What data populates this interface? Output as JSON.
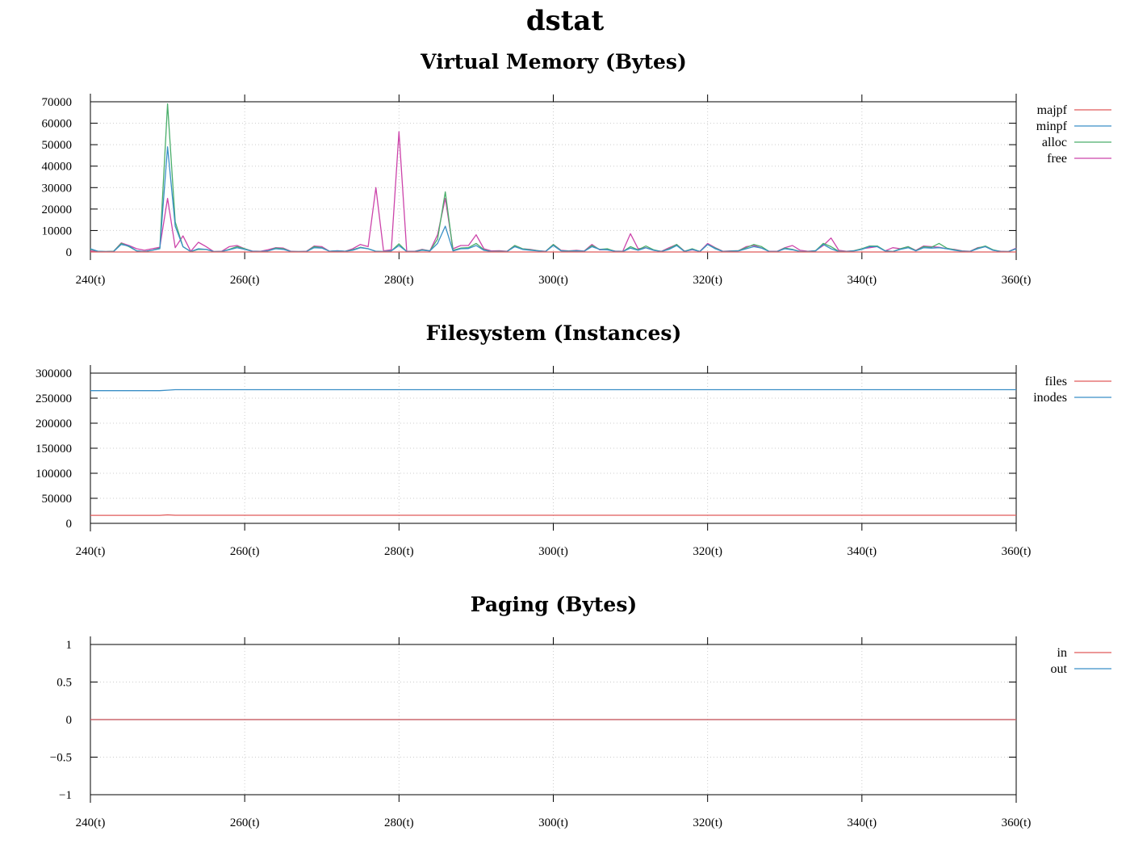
{
  "page_title": "dstat",
  "colors": {
    "red": "#e05a5a",
    "blue": "#3a8fc6",
    "green": "#4aae6a",
    "magenta": "#cc44aa",
    "grid": "#cccccc"
  },
  "chart_data": [
    {
      "type": "line",
      "title": "Virtual Memory (Bytes)",
      "xlabel": "",
      "ylabel": "",
      "xlim": [
        240,
        360
      ],
      "ylim": [
        0,
        70000
      ],
      "xticks": [
        240,
        260,
        280,
        300,
        320,
        340,
        360
      ],
      "xtick_labels": [
        "240(t)",
        "260(t)",
        "280(t)",
        "300(t)",
        "320(t)",
        "340(t)",
        "360(t)"
      ],
      "yticks": [
        0,
        10000,
        20000,
        30000,
        40000,
        50000,
        60000,
        70000
      ],
      "ytick_labels": [
        "0",
        "10000",
        "20000",
        "30000",
        "40000",
        "50000",
        "60000",
        "70000"
      ],
      "grid": true,
      "legend_position": "right",
      "x": [
        240,
        241,
        242,
        243,
        244,
        245,
        246,
        247,
        248,
        249,
        250,
        251,
        252,
        253,
        254,
        255,
        256,
        257,
        258,
        259,
        260,
        261,
        262,
        263,
        264,
        265,
        266,
        267,
        268,
        269,
        270,
        271,
        272,
        273,
        274,
        275,
        276,
        277,
        278,
        279,
        280,
        281,
        282,
        283,
        284,
        285,
        286,
        287,
        288,
        289,
        290,
        291,
        292,
        293,
        294,
        295,
        296,
        297,
        298,
        299,
        300,
        301,
        302,
        303,
        304,
        305,
        306,
        307,
        308,
        309,
        310,
        311,
        312,
        313,
        314,
        315,
        316,
        317,
        318,
        319,
        320,
        321,
        322,
        323,
        324,
        325,
        326,
        327,
        328,
        329,
        330,
        331,
        332,
        333,
        334,
        335,
        336,
        337,
        338,
        339,
        340,
        341,
        342,
        343,
        344,
        345,
        346,
        347,
        348,
        349,
        350,
        351,
        352,
        353,
        354,
        355,
        356,
        357,
        358,
        359,
        360
      ],
      "series": [
        {
          "name": "majpf",
          "color": "#e05a5a",
          "values": [
            0,
            0,
            0,
            0,
            0,
            0,
            0,
            0,
            0,
            0,
            0,
            0,
            0,
            0,
            0,
            0,
            0,
            0,
            0,
            0,
            0,
            0,
            0,
            0,
            0,
            0,
            0,
            0,
            0,
            0,
            0,
            0,
            0,
            0,
            0,
            0,
            0,
            0,
            0,
            0,
            0,
            0,
            0,
            0,
            0,
            0,
            0,
            0,
            0,
            0,
            0,
            0,
            0,
            0,
            0,
            0,
            0,
            0,
            0,
            0,
            0,
            0,
            0,
            0,
            0,
            0,
            0,
            0,
            0,
            0,
            0,
            0,
            0,
            0,
            0,
            0,
            0,
            0,
            0,
            0,
            0,
            0,
            0,
            0,
            0,
            0,
            0,
            0,
            0,
            0,
            0,
            0,
            0,
            0,
            0,
            0,
            0,
            0,
            0,
            0,
            0,
            0,
            0,
            0,
            0,
            0,
            0,
            0,
            0,
            0,
            0,
            0,
            0,
            0,
            0,
            0,
            0,
            0,
            0,
            0,
            0
          ]
        },
        {
          "name": "minpf",
          "color": "#3a8fc6",
          "values": [
            1500,
            300,
            200,
            200,
            3500,
            2800,
            500,
            200,
            800,
            1500,
            49000,
            12000,
            2500,
            200,
            1500,
            1200,
            200,
            200,
            1000,
            2000,
            1200,
            300,
            200,
            500,
            1500,
            1200,
            200,
            200,
            200,
            2000,
            1800,
            300,
            500,
            300,
            800,
            2000,
            1500,
            300,
            200,
            500,
            3000,
            200,
            200,
            800,
            500,
            4000,
            12000,
            500,
            1500,
            1600,
            3000,
            800,
            200,
            200,
            200,
            2500,
            1200,
            800,
            500,
            200,
            3000,
            500,
            300,
            500,
            300,
            2500,
            1200,
            1000,
            300,
            200,
            1800,
            800,
            2000,
            800,
            200,
            1200,
            3000,
            200,
            1200,
            200,
            3500,
            1500,
            200,
            300,
            500,
            1500,
            2500,
            1800,
            200,
            200,
            1500,
            1000,
            200,
            200,
            500,
            3500,
            1500,
            200,
            200,
            500,
            1200,
            2500,
            2500,
            500,
            200,
            1200,
            2000,
            500,
            2000,
            1800,
            2000,
            1500,
            800,
            300,
            200,
            1500,
            2500,
            800,
            200,
            200,
            1500
          ]
        },
        {
          "name": "alloc",
          "color": "#4aae6a",
          "values": [
            1200,
            300,
            200,
            300,
            4000,
            2500,
            500,
            200,
            800,
            1800,
            69000,
            14000,
            2500,
            200,
            1200,
            1200,
            200,
            200,
            1200,
            2500,
            1500,
            300,
            200,
            500,
            1800,
            1500,
            200,
            200,
            200,
            2500,
            2000,
            300,
            500,
            300,
            1000,
            2200,
            1500,
            300,
            200,
            500,
            3800,
            200,
            200,
            1000,
            500,
            6000,
            28000,
            800,
            1800,
            2000,
            4000,
            1000,
            200,
            300,
            200,
            3000,
            1500,
            1000,
            600,
            200,
            3500,
            600,
            400,
            600,
            300,
            3000,
            1200,
            1500,
            300,
            200,
            2500,
            1000,
            2800,
            1000,
            200,
            1500,
            3500,
            300,
            1500,
            200,
            3500,
            1800,
            200,
            400,
            600,
            2000,
            3500,
            2500,
            200,
            200,
            1800,
            1200,
            200,
            200,
            600,
            4000,
            2500,
            300,
            200,
            600,
            1500,
            2800,
            2800,
            600,
            200,
            1500,
            2500,
            600,
            2500,
            2200,
            4000,
            1800,
            1000,
            400,
            200,
            1800,
            2800,
            1000,
            200,
            200,
            1500
          ]
        },
        {
          "name": "free",
          "color": "#cc44aa",
          "values": [
            500,
            200,
            200,
            300,
            4200,
            3000,
            1500,
            800,
            1500,
            2200,
            25000,
            2000,
            7500,
            300,
            4500,
            2500,
            200,
            300,
            2500,
            3000,
            1500,
            400,
            300,
            1000,
            2000,
            1800,
            300,
            200,
            300,
            2800,
            2500,
            300,
            600,
            300,
            1500,
            3500,
            2500,
            30000,
            500,
            1000,
            56000,
            300,
            300,
            1200,
            500,
            8000,
            25000,
            1500,
            3000,
            3000,
            8000,
            1500,
            500,
            600,
            300,
            3000,
            1500,
            1200,
            600,
            300,
            3500,
            800,
            500,
            800,
            400,
            3500,
            1000,
            1200,
            400,
            300,
            8500,
            1500,
            2000,
            800,
            300,
            2000,
            3500,
            400,
            1000,
            300,
            4000,
            2000,
            300,
            500,
            600,
            2500,
            3000,
            1800,
            300,
            300,
            2000,
            3000,
            800,
            300,
            600,
            3000,
            6500,
            800,
            300,
            600,
            1500,
            2000,
            2500,
            500,
            2000,
            1500,
            2500,
            800,
            2800,
            2500,
            2200,
            1500,
            1200,
            500,
            300,
            2000,
            2500,
            800,
            300,
            200,
            1800
          ]
        }
      ]
    },
    {
      "type": "line",
      "title": "Filesystem (Instances)",
      "xlabel": "",
      "ylabel": "",
      "xlim": [
        240,
        360
      ],
      "ylim": [
        0,
        300000
      ],
      "xticks": [
        240,
        260,
        280,
        300,
        320,
        340,
        360
      ],
      "xtick_labels": [
        "240(t)",
        "260(t)",
        "280(t)",
        "300(t)",
        "320(t)",
        "340(t)",
        "360(t)"
      ],
      "yticks": [
        0,
        50000,
        100000,
        150000,
        200000,
        250000,
        300000
      ],
      "ytick_labels": [
        "0",
        "50000",
        "100000",
        "150000",
        "200000",
        "250000",
        "300000"
      ],
      "grid": true,
      "legend_position": "right",
      "x": [
        240,
        249,
        250,
        251,
        360
      ],
      "series": [
        {
          "name": "files",
          "color": "#e05a5a",
          "values": [
            16000,
            16000,
            17000,
            16200,
            16200
          ]
        },
        {
          "name": "inodes",
          "color": "#3a8fc6",
          "values": [
            265000,
            265000,
            266000,
            267000,
            267000
          ]
        }
      ]
    },
    {
      "type": "line",
      "title": "Paging (Bytes)",
      "xlabel": "",
      "ylabel": "",
      "xlim": [
        240,
        360
      ],
      "ylim": [
        -1,
        1
      ],
      "xticks": [
        240,
        260,
        280,
        300,
        320,
        340,
        360
      ],
      "xtick_labels": [
        "240(t)",
        "260(t)",
        "280(t)",
        "300(t)",
        "320(t)",
        "340(t)",
        "360(t)"
      ],
      "yticks": [
        -1,
        -0.5,
        0,
        0.5,
        1
      ],
      "ytick_labels": [
        "−1",
        "−0.5",
        "0",
        "0.5",
        "1"
      ],
      "grid": true,
      "legend_position": "right",
      "x": [
        240,
        360
      ],
      "series": [
        {
          "name": "in",
          "color": "#e05a5a",
          "values": [
            0,
            0
          ]
        },
        {
          "name": "out",
          "color": "#3a8fc6",
          "values": [
            0,
            0
          ]
        }
      ]
    }
  ]
}
